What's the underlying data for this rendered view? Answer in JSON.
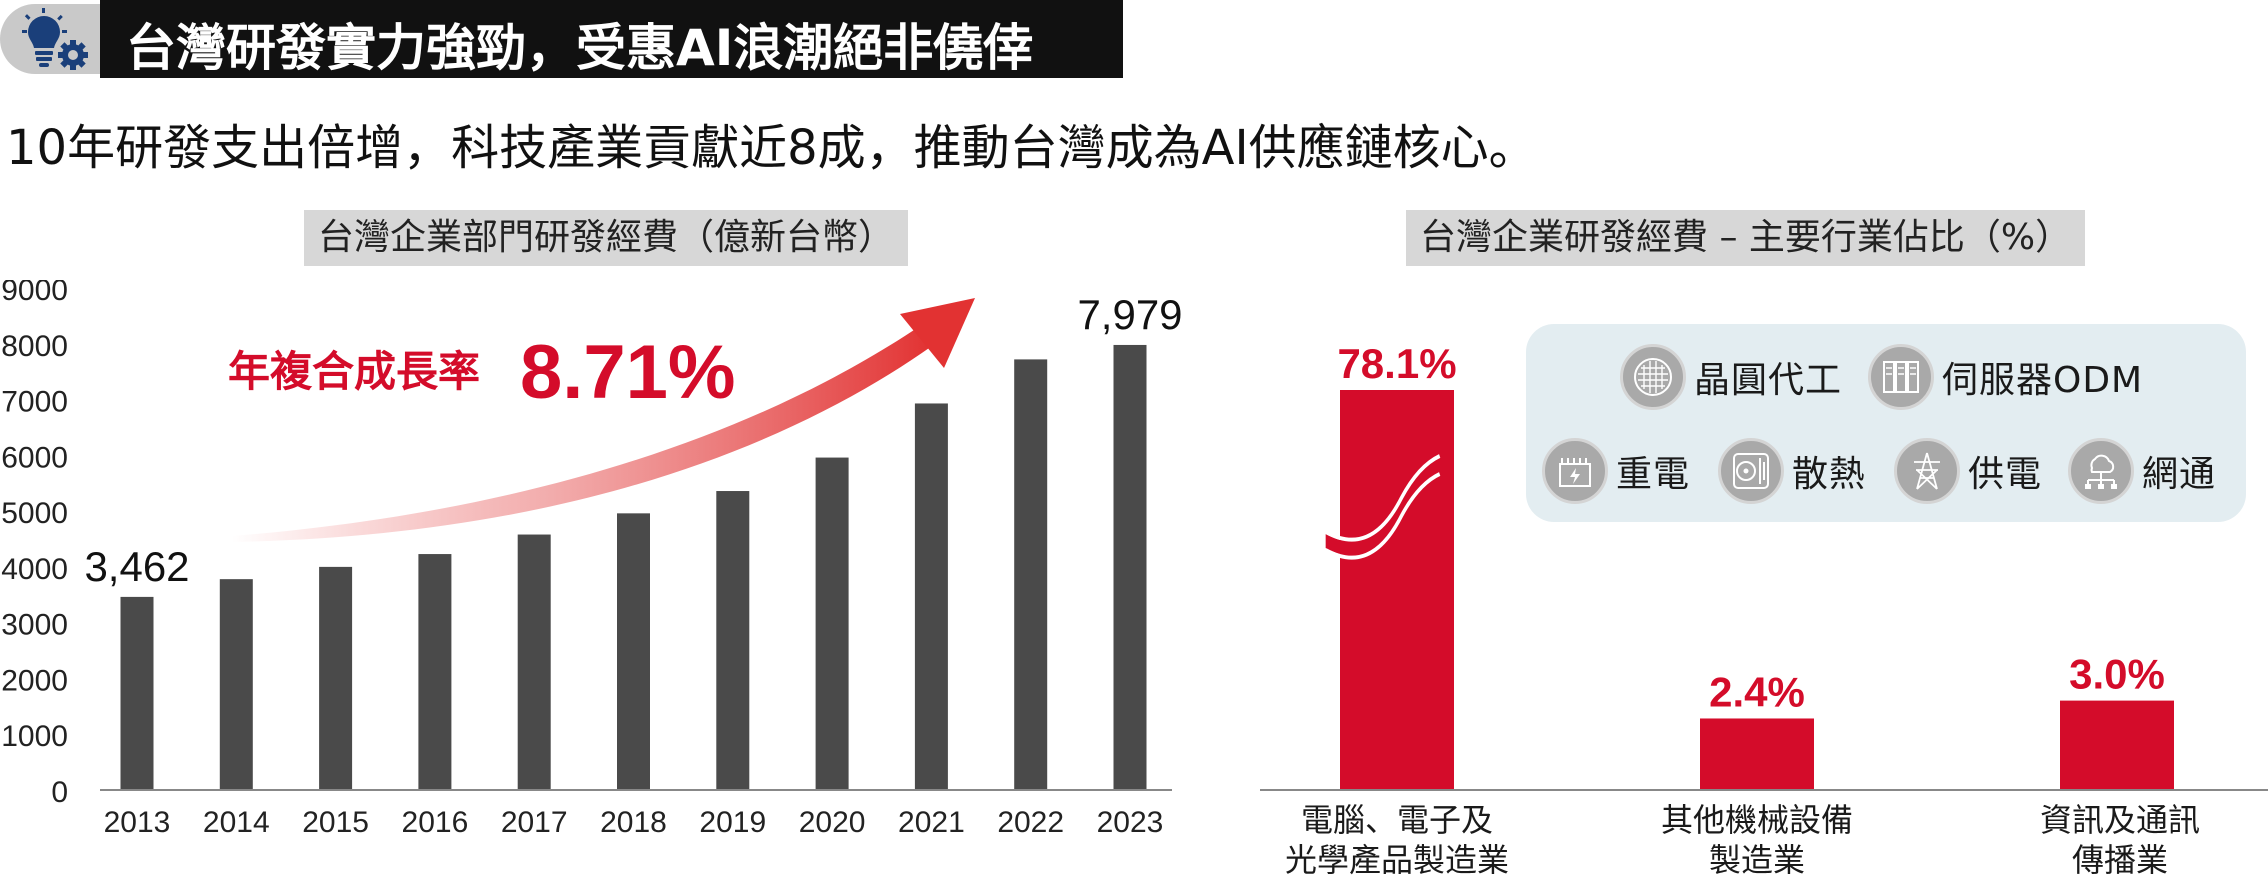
{
  "header": {
    "title": "台灣研發實力強勁，受惠AI浪潮絕非僥倖"
  },
  "subtitle": "10年研發支出倍增，科技產業貢獻近8成，推動台灣成為AI供應鏈核心。",
  "cagr": {
    "label": "年複合成長率",
    "value": "8.71%"
  },
  "colors": {
    "bar_dark": "#4a4a4a",
    "bar_red": "#d40c2a",
    "accent_red": "#d40c2a"
  },
  "chart_data": [
    {
      "type": "bar",
      "title": "台灣企業部門研發經費（億新台幣）",
      "categories": [
        "2013",
        "2014",
        "2015",
        "2016",
        "2017",
        "2018",
        "2019",
        "2020",
        "2021",
        "2022",
        "2023"
      ],
      "values": [
        3462,
        3780,
        4000,
        4230,
        4580,
        4960,
        5360,
        5960,
        6930,
        7720,
        7979
      ],
      "data_labels": [
        {
          "index": 0,
          "text": "3,462"
        },
        {
          "index": 10,
          "text": "7,979"
        }
      ],
      "yticks": [
        "0",
        "1000",
        "2000",
        "3000",
        "4000",
        "5000",
        "6000",
        "7000",
        "8000",
        "9000"
      ],
      "ylim": [
        0,
        9000
      ],
      "xlabel": "",
      "ylabel": "",
      "grid": false
    },
    {
      "type": "bar",
      "title": "台灣企業研發經費 – 主要行業佔比（%）",
      "categories": [
        "電腦、電子及光學產品製造業",
        "其他機械設備製造業",
        "資訊及通訊傳播業"
      ],
      "category_lines": [
        [
          "電腦、電子及",
          "光學產品製造業"
        ],
        [
          "其他機械設備",
          "製造業"
        ],
        [
          "資訊及通訊",
          "傳播業"
        ]
      ],
      "values": [
        78.1,
        2.4,
        3.0
      ],
      "data_labels": [
        "78.1%",
        "2.4%",
        "3.0%"
      ],
      "axis_break": true,
      "grid": false,
      "legend": {
        "placement": "top-right",
        "items": [
          {
            "icon": "wafer-icon",
            "label": "晶圓代工"
          },
          {
            "icon": "server-icon",
            "label": "伺服器ODM"
          },
          {
            "icon": "power-supply-icon",
            "label": "重電"
          },
          {
            "icon": "cooling-fan-icon",
            "label": "散熱"
          },
          {
            "icon": "power-tower-icon",
            "label": "供電"
          },
          {
            "icon": "network-icon",
            "label": "網通"
          }
        ]
      }
    }
  ]
}
